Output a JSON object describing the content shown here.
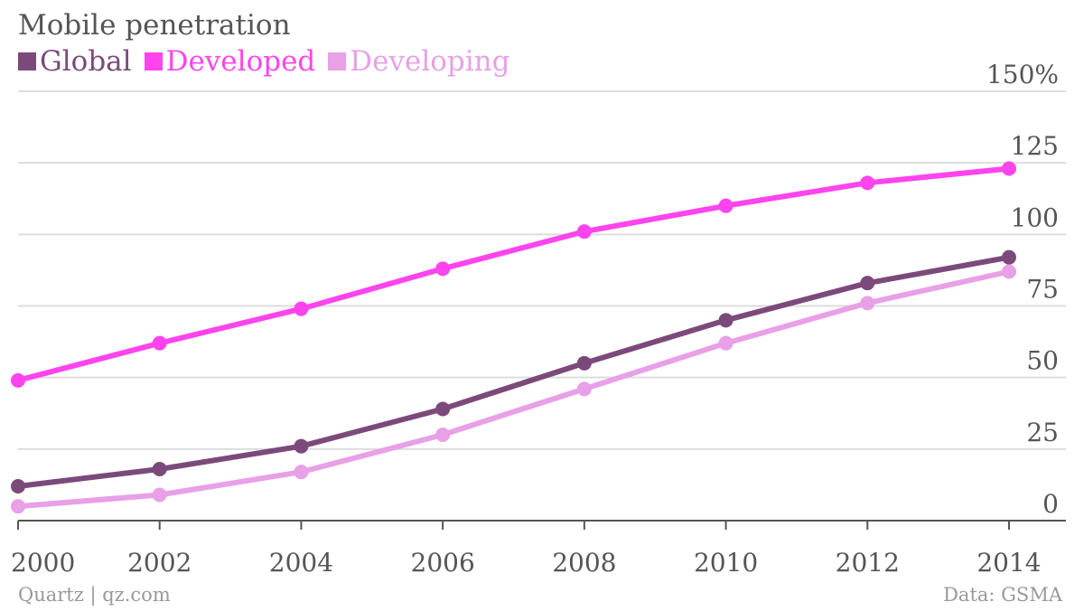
{
  "title": "Mobile penetration",
  "footer": {
    "credit": "Quartz | qz.com",
    "source": "Data: GSMA"
  },
  "colors": {
    "global": "#7c4a7a",
    "developed": "#ff44ee",
    "developing": "#e8a0e6",
    "grid": "#dddddd",
    "axis": "#555555"
  },
  "chart_data": {
    "type": "line",
    "x": [
      2000,
      2002,
      2004,
      2006,
      2008,
      2010,
      2012,
      2014
    ],
    "series": [
      {
        "name": "Global",
        "color": "#7c4a7a",
        "values": [
          12,
          18,
          26,
          39,
          55,
          70,
          83,
          92
        ]
      },
      {
        "name": "Developed",
        "color": "#ff44ee",
        "values": [
          49,
          62,
          74,
          88,
          101,
          110,
          118,
          123
        ]
      },
      {
        "name": "Developing",
        "color": "#e8a0e6",
        "values": [
          5,
          9,
          17,
          30,
          46,
          62,
          76,
          87
        ]
      }
    ],
    "y_ticks": [
      {
        "value": 0,
        "label": "0"
      },
      {
        "value": 25,
        "label": "25"
      },
      {
        "value": 50,
        "label": "50"
      },
      {
        "value": 75,
        "label": "75"
      },
      {
        "value": 100,
        "label": "100"
      },
      {
        "value": 125,
        "label": "125"
      },
      {
        "value": 150,
        "label": "150%"
      }
    ],
    "x_ticks": [
      "2000",
      "2002",
      "2004",
      "2006",
      "2008",
      "2010",
      "2012",
      "2014"
    ],
    "ylim": [
      0,
      150
    ],
    "xlim": [
      2000,
      2014
    ],
    "grid": true,
    "legend": "top-left",
    "y_axis_side": "right"
  }
}
